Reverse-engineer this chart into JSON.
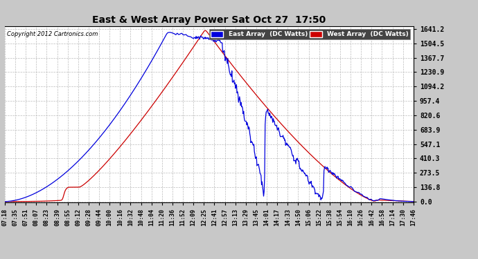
{
  "title": "East & West Array Power Sat Oct 27  17:50",
  "copyright": "Copyright 2012 Cartronics.com",
  "legend_east": "East Array  (DC Watts)",
  "legend_west": "West Array  (DC Watts)",
  "east_color": "#0000dd",
  "west_color": "#cc0000",
  "legend_east_bg": "#0000dd",
  "legend_west_bg": "#cc0000",
  "background_color": "#c8c8c8",
  "plot_bg_color": "#ffffff",
  "yticks": [
    0.0,
    136.8,
    273.5,
    410.3,
    547.1,
    683.9,
    820.6,
    957.4,
    1094.2,
    1230.9,
    1367.7,
    1504.5,
    1641.2
  ],
  "ymax": 1641.2,
  "ymin": 0.0,
  "xtick_labels": [
    "07:18",
    "07:35",
    "07:51",
    "08:07",
    "08:23",
    "08:39",
    "08:55",
    "09:12",
    "09:28",
    "09:44",
    "10:00",
    "10:16",
    "10:32",
    "10:48",
    "11:04",
    "11:20",
    "11:36",
    "11:52",
    "12:09",
    "12:25",
    "12:41",
    "12:57",
    "13:13",
    "13:29",
    "13:45",
    "14:01",
    "14:17",
    "14:33",
    "14:50",
    "15:06",
    "15:22",
    "15:38",
    "15:54",
    "16:10",
    "16:26",
    "16:42",
    "16:58",
    "17:14",
    "17:30",
    "17:46"
  ],
  "grid_color": "#bbbbbb",
  "grid_style": "--"
}
